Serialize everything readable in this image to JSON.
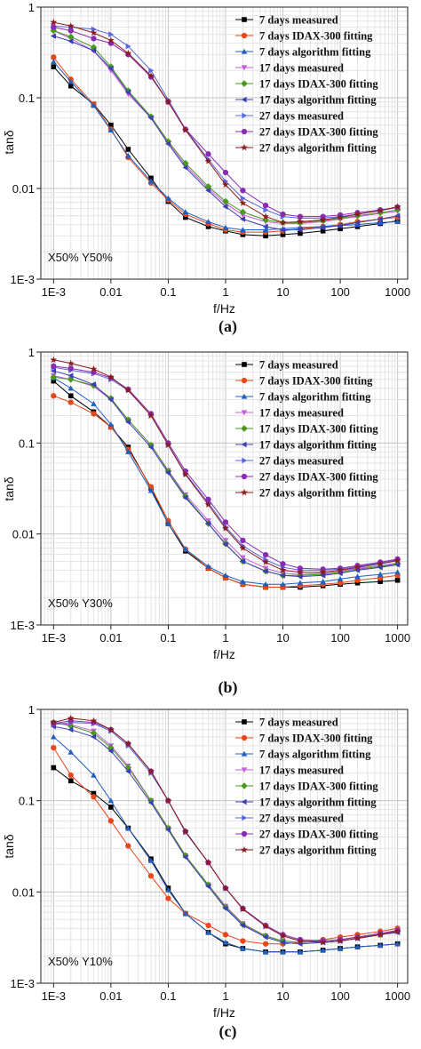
{
  "figure": {
    "colors": {
      "m7": "#000000",
      "i7": "#e8471a",
      "a7": "#1f5fbf",
      "m17": "#c85ce0",
      "i17": "#4a9a1c",
      "a17": "#3d3db5",
      "m27": "#5a66e0",
      "i27": "#8a2bb5",
      "a27": "#8b1a1a"
    }
  },
  "chart_data": [
    {
      "type": "line",
      "panel_label": "(a)",
      "condition": "X50% Y50%",
      "xlabel": "f/Hz",
      "ylabel": "tanδ",
      "xscale": "log",
      "yscale": "log",
      "xlim": [
        0.0006,
        1500
      ],
      "ylim": [
        0.001,
        1
      ],
      "xticks": [
        "1E-3",
        "0.01",
        "0.1",
        "1",
        "10",
        "100",
        "1000"
      ],
      "yticks": [
        "1",
        "0.1",
        "0.01",
        "1E-3"
      ],
      "grid": true,
      "legend": "top-right",
      "x": [
        0.001,
        0.002,
        0.005,
        0.01,
        0.02,
        0.05,
        0.1,
        0.2,
        0.5,
        1,
        2,
        5,
        10,
        20,
        50,
        100,
        200,
        500,
        1000
      ],
      "series": [
        {
          "name": "7 days measured",
          "marker": "square",
          "color_key": "m7",
          "values": [
            0.22,
            0.135,
            0.085,
            0.05,
            0.027,
            0.013,
            0.0072,
            0.0048,
            0.0038,
            0.0034,
            0.0031,
            0.003,
            0.0031,
            0.0032,
            0.0034,
            0.0036,
            0.0038,
            0.0041,
            0.0044
          ]
        },
        {
          "name": "7 days IDAX-300 fitting",
          "marker": "circle",
          "color_key": "i7",
          "values": [
            0.28,
            0.16,
            0.085,
            0.045,
            0.022,
            0.0115,
            0.0075,
            0.0052,
            0.0041,
            0.0035,
            0.0033,
            0.0033,
            0.0034,
            0.0036,
            0.0038,
            0.004,
            0.0043,
            0.0046,
            0.0048
          ]
        },
        {
          "name": "7 days algorithm fitting",
          "marker": "triangle-up",
          "color_key": "a7",
          "values": [
            0.25,
            0.15,
            0.082,
            0.044,
            0.023,
            0.012,
            0.0078,
            0.0055,
            0.0043,
            0.0037,
            0.0035,
            0.0035,
            0.0036,
            0.0037,
            0.0038,
            0.0039,
            0.004,
            0.0042,
            0.0043
          ]
        },
        {
          "name": "17 days measured",
          "marker": "triangle-down",
          "color_key": "m17",
          "values": [
            0.55,
            0.45,
            0.33,
            0.2,
            0.11,
            0.06,
            0.032,
            0.018,
            0.01,
            0.0068,
            0.0051,
            0.0043,
            0.0041,
            0.0041,
            0.0043,
            0.0046,
            0.0049,
            0.0053,
            0.0056
          ]
        },
        {
          "name": "17 days IDAX-300 fitting",
          "marker": "diamond",
          "color_key": "i17",
          "values": [
            0.55,
            0.47,
            0.36,
            0.22,
            0.12,
            0.062,
            0.033,
            0.019,
            0.0105,
            0.0072,
            0.0055,
            0.0045,
            0.0042,
            0.0042,
            0.0044,
            0.0047,
            0.005,
            0.0054,
            0.0058
          ]
        },
        {
          "name": "17 days algorithm fitting",
          "marker": "triangle-left",
          "color_key": "a17",
          "values": [
            0.48,
            0.42,
            0.33,
            0.21,
            0.115,
            0.06,
            0.031,
            0.017,
            0.0095,
            0.0063,
            0.0046,
            0.0038,
            0.0035,
            0.0035,
            0.0037,
            0.0039,
            0.0042,
            0.0046,
            0.005
          ]
        },
        {
          "name": "27 days measured",
          "marker": "triangle-right",
          "color_key": "m27",
          "values": [
            0.62,
            0.6,
            0.57,
            0.5,
            0.37,
            0.2,
            0.095,
            0.045,
            0.021,
            0.012,
            0.0078,
            0.0058,
            0.0049,
            0.0047,
            0.0047,
            0.0049,
            0.0052,
            0.0057,
            0.0062
          ]
        },
        {
          "name": "27 days IDAX-300 fitting",
          "marker": "circle",
          "color_key": "i27",
          "values": [
            0.6,
            0.55,
            0.45,
            0.4,
            0.3,
            0.17,
            0.09,
            0.045,
            0.024,
            0.015,
            0.0095,
            0.0065,
            0.0052,
            0.0049,
            0.0049,
            0.0051,
            0.0054,
            0.0058,
            0.0062
          ]
        },
        {
          "name": "27 days algorithm fitting",
          "marker": "star",
          "color_key": "a27",
          "values": [
            0.68,
            0.62,
            0.52,
            0.43,
            0.31,
            0.175,
            0.09,
            0.044,
            0.02,
            0.011,
            0.0069,
            0.0049,
            0.0042,
            0.0043,
            0.0045,
            0.0048,
            0.0052,
            0.0057,
            0.0063
          ]
        }
      ]
    },
    {
      "type": "line",
      "panel_label": "(b)",
      "condition": "X50% Y30%",
      "xlabel": "f/Hz",
      "ylabel": "tanδ",
      "xscale": "log",
      "yscale": "log",
      "xlim": [
        0.0006,
        1500
      ],
      "ylim": [
        0.001,
        1
      ],
      "xticks": [
        "1E-3",
        "0.01",
        "0.1",
        "1",
        "10",
        "100",
        "1000"
      ],
      "yticks": [
        "1",
        "0.1",
        "0.01",
        "1E-3"
      ],
      "grid": true,
      "legend": "top-right",
      "x": [
        0.001,
        0.002,
        0.005,
        0.01,
        0.02,
        0.05,
        0.1,
        0.2,
        0.5,
        1,
        2,
        5,
        10,
        20,
        50,
        100,
        200,
        500,
        1000
      ],
      "series": [
        {
          "name": "7 days measured",
          "marker": "square",
          "color_key": "m7",
          "values": [
            0.48,
            0.33,
            0.22,
            0.15,
            0.09,
            0.032,
            0.013,
            0.0065,
            0.0042,
            0.0033,
            0.0028,
            0.0026,
            0.0026,
            0.0026,
            0.0027,
            0.0028,
            0.0029,
            0.003,
            0.0031
          ]
        },
        {
          "name": "7 days IDAX-300 fitting",
          "marker": "circle",
          "color_key": "i7",
          "values": [
            0.33,
            0.28,
            0.21,
            0.15,
            0.085,
            0.033,
            0.014,
            0.0068,
            0.0042,
            0.0033,
            0.0028,
            0.0026,
            0.0026,
            0.0027,
            0.0028,
            0.0029,
            0.0031,
            0.0033,
            0.0035
          ]
        },
        {
          "name": "7 days algorithm fitting",
          "marker": "triangle-up",
          "color_key": "a7",
          "values": [
            0.52,
            0.4,
            0.27,
            0.16,
            0.08,
            0.03,
            0.013,
            0.0068,
            0.0044,
            0.0035,
            0.003,
            0.0028,
            0.0028,
            0.0029,
            0.003,
            0.0032,
            0.0034,
            0.0036,
            0.0038
          ]
        },
        {
          "name": "17 days measured",
          "marker": "triangle-down",
          "color_key": "m17",
          "values": [
            0.55,
            0.5,
            0.42,
            0.3,
            0.18,
            0.095,
            0.05,
            0.027,
            0.014,
            0.0085,
            0.0055,
            0.0042,
            0.0037,
            0.0036,
            0.0037,
            0.0039,
            0.0042,
            0.0045,
            0.0048
          ]
        },
        {
          "name": "17 days IDAX-300 fitting",
          "marker": "diamond",
          "color_key": "i17",
          "values": [
            0.53,
            0.5,
            0.43,
            0.31,
            0.18,
            0.095,
            0.049,
            0.026,
            0.013,
            0.0078,
            0.005,
            0.0039,
            0.0035,
            0.0035,
            0.0036,
            0.0038,
            0.0041,
            0.0044,
            0.0047
          ]
        },
        {
          "name": "17 days algorithm fitting",
          "marker": "triangle-left",
          "color_key": "a17",
          "values": [
            0.62,
            0.55,
            0.44,
            0.3,
            0.17,
            0.09,
            0.047,
            0.025,
            0.013,
            0.0077,
            0.005,
            0.0039,
            0.0035,
            0.0034,
            0.0035,
            0.0037,
            0.004,
            0.0043,
            0.0046
          ]
        },
        {
          "name": "27 days measured",
          "marker": "triangle-right",
          "color_key": "m27",
          "values": [
            0.68,
            0.63,
            0.58,
            0.5,
            0.38,
            0.2,
            0.095,
            0.046,
            0.022,
            0.012,
            0.0074,
            0.0052,
            0.0043,
            0.004,
            0.004,
            0.0041,
            0.0044,
            0.0048,
            0.0052
          ]
        },
        {
          "name": "27 days IDAX-300 fitting",
          "marker": "circle",
          "color_key": "i27",
          "values": [
            0.7,
            0.66,
            0.6,
            0.52,
            0.39,
            0.21,
            0.1,
            0.049,
            0.024,
            0.0135,
            0.0085,
            0.0059,
            0.0047,
            0.0042,
            0.0041,
            0.0042,
            0.0045,
            0.0049,
            0.0053
          ]
        },
        {
          "name": "27 days algorithm fitting",
          "marker": "star",
          "color_key": "a27",
          "values": [
            0.82,
            0.75,
            0.65,
            0.53,
            0.38,
            0.2,
            0.095,
            0.045,
            0.021,
            0.0115,
            0.007,
            0.0049,
            0.004,
            0.0038,
            0.0038,
            0.004,
            0.0043,
            0.0047,
            0.0051
          ]
        }
      ]
    },
    {
      "type": "line",
      "panel_label": "(c)",
      "condition": "X50% Y10%",
      "xlabel": "f/Hz",
      "ylabel": "tanδ",
      "xscale": "log",
      "yscale": "log",
      "xlim": [
        0.0006,
        1500
      ],
      "ylim": [
        0.001,
        1
      ],
      "xticks": [
        "1E-3",
        "0.01",
        "0.1",
        "1",
        "10",
        "100",
        "1000"
      ],
      "yticks": [
        "1",
        "0.1",
        "0.01",
        "1E-3"
      ],
      "grid": true,
      "legend": "top-right",
      "x": [
        0.001,
        0.002,
        0.005,
        0.01,
        0.02,
        0.05,
        0.1,
        0.2,
        0.5,
        1,
        2,
        5,
        10,
        20,
        50,
        100,
        200,
        500,
        1000
      ],
      "series": [
        {
          "name": "7 days measured",
          "marker": "square",
          "color_key": "m7",
          "values": [
            0.23,
            0.165,
            0.12,
            0.085,
            0.05,
            0.023,
            0.011,
            0.0058,
            0.0036,
            0.0027,
            0.0024,
            0.0022,
            0.0022,
            0.0022,
            0.0023,
            0.0024,
            0.0025,
            0.0026,
            0.0027
          ]
        },
        {
          "name": "7 days IDAX-300 fitting",
          "marker": "circle",
          "color_key": "i7",
          "values": [
            0.38,
            0.19,
            0.11,
            0.06,
            0.032,
            0.015,
            0.0085,
            0.0058,
            0.0043,
            0.0034,
            0.0029,
            0.0027,
            0.0027,
            0.0028,
            0.003,
            0.0032,
            0.0034,
            0.0037,
            0.004
          ]
        },
        {
          "name": "7 days algorithm fitting",
          "marker": "triangle-up",
          "color_key": "a7",
          "values": [
            0.5,
            0.34,
            0.19,
            0.1,
            0.05,
            0.022,
            0.0105,
            0.0058,
            0.0036,
            0.0028,
            0.0024,
            0.0022,
            0.0022,
            0.0022,
            0.0023,
            0.0024,
            0.0025,
            0.0026,
            0.0027
          ]
        },
        {
          "name": "17 days measured",
          "marker": "triangle-down",
          "color_key": "m17",
          "values": [
            0.72,
            0.68,
            0.58,
            0.4,
            0.24,
            0.1,
            0.05,
            0.025,
            0.012,
            0.007,
            0.0045,
            0.0033,
            0.0029,
            0.0028,
            0.0029,
            0.003,
            0.0032,
            0.0035,
            0.0038
          ]
        },
        {
          "name": "17 days IDAX-300 fitting",
          "marker": "diamond",
          "color_key": "i17",
          "values": [
            0.72,
            0.66,
            0.55,
            0.38,
            0.23,
            0.1,
            0.05,
            0.025,
            0.012,
            0.0068,
            0.0044,
            0.0033,
            0.0029,
            0.0028,
            0.0029,
            0.003,
            0.0032,
            0.0034,
            0.0037
          ]
        },
        {
          "name": "17 days algorithm fitting",
          "marker": "triangle-left",
          "color_key": "a17",
          "values": [
            0.65,
            0.6,
            0.5,
            0.35,
            0.21,
            0.095,
            0.048,
            0.024,
            0.0115,
            0.0066,
            0.0043,
            0.0032,
            0.0028,
            0.0027,
            0.0028,
            0.0029,
            0.0031,
            0.0034,
            0.0036
          ]
        },
        {
          "name": "27 days measured",
          "marker": "triangle-right",
          "color_key": "m27",
          "values": [
            0.68,
            0.72,
            0.7,
            0.58,
            0.4,
            0.2,
            0.1,
            0.045,
            0.021,
            0.011,
            0.0065,
            0.0042,
            0.0033,
            0.0029,
            0.0028,
            0.0029,
            0.0031,
            0.0034,
            0.0037
          ]
        },
        {
          "name": "27 days IDAX-300 fitting",
          "marker": "circle",
          "color_key": "i27",
          "values": [
            0.7,
            0.75,
            0.72,
            0.6,
            0.42,
            0.21,
            0.1,
            0.046,
            0.021,
            0.011,
            0.0066,
            0.0043,
            0.0034,
            0.003,
            0.0029,
            0.003,
            0.0032,
            0.0035,
            0.0038
          ]
        },
        {
          "name": "27 days algorithm fitting",
          "marker": "star",
          "color_key": "a27",
          "values": [
            0.72,
            0.8,
            0.75,
            0.6,
            0.42,
            0.21,
            0.1,
            0.046,
            0.021,
            0.011,
            0.0065,
            0.0042,
            0.0033,
            0.0029,
            0.0028,
            0.0029,
            0.0031,
            0.0034,
            0.0037
          ]
        }
      ]
    }
  ]
}
